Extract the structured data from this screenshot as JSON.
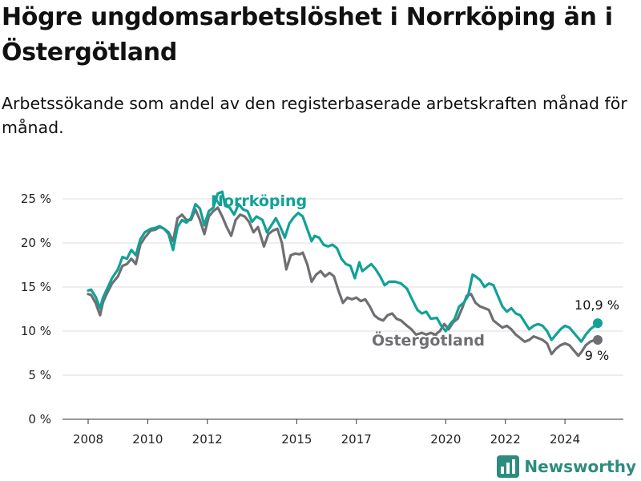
{
  "title": "Högre ungdomsarbetslöshet i Norrköping än i Östergötland",
  "subtitle": "Arbetssökande som andel av den registerbaserade arbetskraften månad för månad.",
  "brand": {
    "name": "Newsworthy"
  },
  "colors": {
    "norrkoping": "#11a197",
    "ostergotland": "#6f6f73"
  },
  "chart_data": {
    "type": "line",
    "y_ticks": [
      "0 %",
      "5 %",
      "10 %",
      "15 %",
      "20 %",
      "25 %"
    ],
    "x_ticks": [
      "2008",
      "2010",
      "2012",
      "2015",
      "2017",
      "2020",
      "2022",
      "2024"
    ],
    "ylim": [
      0,
      25
    ],
    "grid": true,
    "series": [
      {
        "name": "Norrköping",
        "color": "#11a197",
        "end_label": "10,9 %",
        "points": [
          [
            2008.0,
            14.6
          ],
          [
            2008.1,
            14.7
          ],
          [
            2008.25,
            13.9
          ],
          [
            2008.4,
            12.6
          ],
          [
            2008.5,
            13.8
          ],
          [
            2008.65,
            14.9
          ],
          [
            2008.8,
            16.0
          ],
          [
            2009.0,
            17.0
          ],
          [
            2009.15,
            18.4
          ],
          [
            2009.3,
            18.2
          ],
          [
            2009.45,
            19.2
          ],
          [
            2009.6,
            18.6
          ],
          [
            2009.75,
            20.4
          ],
          [
            2009.9,
            21.2
          ],
          [
            2010.1,
            21.6
          ],
          [
            2010.25,
            21.7
          ],
          [
            2010.4,
            21.9
          ],
          [
            2010.55,
            21.6
          ],
          [
            2010.7,
            21.0
          ],
          [
            2010.85,
            19.2
          ],
          [
            2011.0,
            21.8
          ],
          [
            2011.15,
            22.6
          ],
          [
            2011.3,
            22.3
          ],
          [
            2011.45,
            22.8
          ],
          [
            2011.6,
            24.4
          ],
          [
            2011.75,
            23.9
          ],
          [
            2011.9,
            22.0
          ],
          [
            2012.05,
            23.6
          ],
          [
            2012.2,
            24.0
          ],
          [
            2012.35,
            25.6
          ],
          [
            2012.5,
            25.8
          ],
          [
            2012.6,
            24.2
          ],
          [
            2012.75,
            24.0
          ],
          [
            2012.9,
            23.2
          ],
          [
            2013.05,
            24.4
          ],
          [
            2013.2,
            23.8
          ],
          [
            2013.35,
            23.6
          ],
          [
            2013.5,
            22.4
          ],
          [
            2013.65,
            23.0
          ],
          [
            2013.85,
            22.6
          ],
          [
            2014.0,
            21.2
          ],
          [
            2014.15,
            22.0
          ],
          [
            2014.3,
            22.8
          ],
          [
            2014.45,
            21.8
          ],
          [
            2014.6,
            20.6
          ],
          [
            2014.75,
            22.2
          ],
          [
            2014.9,
            22.9
          ],
          [
            2015.05,
            23.4
          ],
          [
            2015.2,
            23.0
          ],
          [
            2015.35,
            21.6
          ],
          [
            2015.5,
            20.2
          ],
          [
            2015.6,
            20.8
          ],
          [
            2015.75,
            20.6
          ],
          [
            2015.9,
            19.8
          ],
          [
            2016.05,
            19.6
          ],
          [
            2016.2,
            19.8
          ],
          [
            2016.35,
            19.4
          ],
          [
            2016.5,
            18.2
          ],
          [
            2016.65,
            17.6
          ],
          [
            2016.8,
            17.4
          ],
          [
            2016.95,
            16.0
          ],
          [
            2017.1,
            17.8
          ],
          [
            2017.2,
            16.8
          ],
          [
            2017.35,
            17.2
          ],
          [
            2017.5,
            17.6
          ],
          [
            2017.65,
            17.0
          ],
          [
            2017.8,
            16.2
          ],
          [
            2017.95,
            15.2
          ],
          [
            2018.1,
            15.6
          ],
          [
            2018.3,
            15.6
          ],
          [
            2018.5,
            15.4
          ],
          [
            2018.7,
            14.8
          ],
          [
            2018.9,
            13.4
          ],
          [
            2019.05,
            12.4
          ],
          [
            2019.2,
            12.0
          ],
          [
            2019.35,
            12.2
          ],
          [
            2019.5,
            11.4
          ],
          [
            2019.7,
            11.5
          ],
          [
            2019.85,
            10.6
          ],
          [
            2020.0,
            10.0
          ],
          [
            2020.15,
            10.8
          ],
          [
            2020.3,
            11.4
          ],
          [
            2020.45,
            12.8
          ],
          [
            2020.6,
            13.2
          ],
          [
            2020.75,
            14.0
          ],
          [
            2020.9,
            16.4
          ],
          [
            2021.0,
            16.2
          ],
          [
            2021.15,
            15.8
          ],
          [
            2021.3,
            15.0
          ],
          [
            2021.45,
            15.4
          ],
          [
            2021.6,
            15.2
          ],
          [
            2021.75,
            14.0
          ],
          [
            2021.9,
            12.8
          ],
          [
            2022.05,
            12.2
          ],
          [
            2022.2,
            12.6
          ],
          [
            2022.35,
            12.0
          ],
          [
            2022.5,
            11.8
          ],
          [
            2022.65,
            11.0
          ],
          [
            2022.8,
            10.2
          ],
          [
            2022.95,
            10.6
          ],
          [
            2023.1,
            10.8
          ],
          [
            2023.25,
            10.6
          ],
          [
            2023.4,
            10.0
          ],
          [
            2023.55,
            9.0
          ],
          [
            2023.7,
            9.6
          ],
          [
            2023.85,
            10.2
          ],
          [
            2024.0,
            10.6
          ],
          [
            2024.15,
            10.4
          ],
          [
            2024.3,
            9.8
          ],
          [
            2024.45,
            9.2
          ],
          [
            2024.55,
            8.8
          ],
          [
            2024.7,
            9.6
          ],
          [
            2024.85,
            10.2
          ],
          [
            2025.0,
            10.6
          ],
          [
            2025.1,
            10.9
          ]
        ]
      },
      {
        "name": "Östergötland",
        "color": "#6f6f73",
        "end_label": "9 %",
        "points": [
          [
            2008.0,
            14.2
          ],
          [
            2008.1,
            14.1
          ],
          [
            2008.25,
            13.2
          ],
          [
            2008.4,
            11.8
          ],
          [
            2008.5,
            13.3
          ],
          [
            2008.65,
            14.4
          ],
          [
            2008.8,
            15.4
          ],
          [
            2009.0,
            16.2
          ],
          [
            2009.15,
            17.4
          ],
          [
            2009.3,
            17.6
          ],
          [
            2009.45,
            18.2
          ],
          [
            2009.6,
            17.6
          ],
          [
            2009.75,
            19.8
          ],
          [
            2009.9,
            20.6
          ],
          [
            2010.1,
            21.4
          ],
          [
            2010.25,
            21.5
          ],
          [
            2010.4,
            21.8
          ],
          [
            2010.55,
            21.6
          ],
          [
            2010.7,
            21.2
          ],
          [
            2010.85,
            20.2
          ],
          [
            2011.0,
            22.8
          ],
          [
            2011.15,
            23.2
          ],
          [
            2011.3,
            22.6
          ],
          [
            2011.45,
            22.6
          ],
          [
            2011.6,
            23.8
          ],
          [
            2011.75,
            22.6
          ],
          [
            2011.9,
            21.0
          ],
          [
            2012.05,
            23.0
          ],
          [
            2012.2,
            23.6
          ],
          [
            2012.35,
            24.0
          ],
          [
            2012.5,
            23.0
          ],
          [
            2012.65,
            21.8
          ],
          [
            2012.8,
            20.8
          ],
          [
            2012.95,
            22.6
          ],
          [
            2013.1,
            23.2
          ],
          [
            2013.25,
            23.0
          ],
          [
            2013.4,
            22.4
          ],
          [
            2013.55,
            21.2
          ],
          [
            2013.7,
            21.8
          ],
          [
            2013.9,
            19.6
          ],
          [
            2014.05,
            21.0
          ],
          [
            2014.2,
            21.4
          ],
          [
            2014.35,
            21.6
          ],
          [
            2014.5,
            20.0
          ],
          [
            2014.65,
            17.0
          ],
          [
            2014.8,
            18.6
          ],
          [
            2014.95,
            18.8
          ],
          [
            2015.1,
            18.7
          ],
          [
            2015.2,
            18.9
          ],
          [
            2015.35,
            17.6
          ],
          [
            2015.5,
            15.6
          ],
          [
            2015.65,
            16.4
          ],
          [
            2015.8,
            16.8
          ],
          [
            2015.95,
            16.2
          ],
          [
            2016.1,
            16.6
          ],
          [
            2016.25,
            16.2
          ],
          [
            2016.4,
            14.6
          ],
          [
            2016.55,
            13.2
          ],
          [
            2016.7,
            13.8
          ],
          [
            2016.85,
            13.6
          ],
          [
            2017.0,
            13.8
          ],
          [
            2017.15,
            13.4
          ],
          [
            2017.3,
            13.6
          ],
          [
            2017.45,
            12.8
          ],
          [
            2017.6,
            11.8
          ],
          [
            2017.75,
            11.4
          ],
          [
            2017.9,
            11.2
          ],
          [
            2018.05,
            11.8
          ],
          [
            2018.2,
            12.0
          ],
          [
            2018.35,
            11.4
          ],
          [
            2018.5,
            11.2
          ],
          [
            2018.7,
            10.6
          ],
          [
            2018.85,
            10.2
          ],
          [
            2019.0,
            9.6
          ],
          [
            2019.2,
            9.8
          ],
          [
            2019.35,
            9.6
          ],
          [
            2019.5,
            9.8
          ],
          [
            2019.65,
            9.6
          ],
          [
            2019.8,
            10.0
          ],
          [
            2019.95,
            10.8
          ],
          [
            2020.1,
            10.2
          ],
          [
            2020.25,
            11.0
          ],
          [
            2020.4,
            11.4
          ],
          [
            2020.55,
            12.6
          ],
          [
            2020.7,
            14.0
          ],
          [
            2020.85,
            14.2
          ],
          [
            2021.0,
            13.2
          ],
          [
            2021.15,
            12.8
          ],
          [
            2021.3,
            12.6
          ],
          [
            2021.45,
            12.4
          ],
          [
            2021.6,
            11.2
          ],
          [
            2021.75,
            10.8
          ],
          [
            2021.9,
            10.4
          ],
          [
            2022.05,
            10.6
          ],
          [
            2022.2,
            10.2
          ],
          [
            2022.35,
            9.6
          ],
          [
            2022.5,
            9.2
          ],
          [
            2022.65,
            8.8
          ],
          [
            2022.8,
            9.0
          ],
          [
            2022.95,
            9.4
          ],
          [
            2023.1,
            9.2
          ],
          [
            2023.25,
            9.0
          ],
          [
            2023.4,
            8.6
          ],
          [
            2023.55,
            7.4
          ],
          [
            2023.7,
            8.0
          ],
          [
            2023.85,
            8.4
          ],
          [
            2024.0,
            8.6
          ],
          [
            2024.15,
            8.4
          ],
          [
            2024.3,
            7.8
          ],
          [
            2024.45,
            7.2
          ],
          [
            2024.55,
            7.6
          ],
          [
            2024.7,
            8.4
          ],
          [
            2024.85,
            8.8
          ],
          [
            2025.0,
            9.0
          ],
          [
            2025.1,
            9.0
          ]
        ]
      }
    ]
  }
}
